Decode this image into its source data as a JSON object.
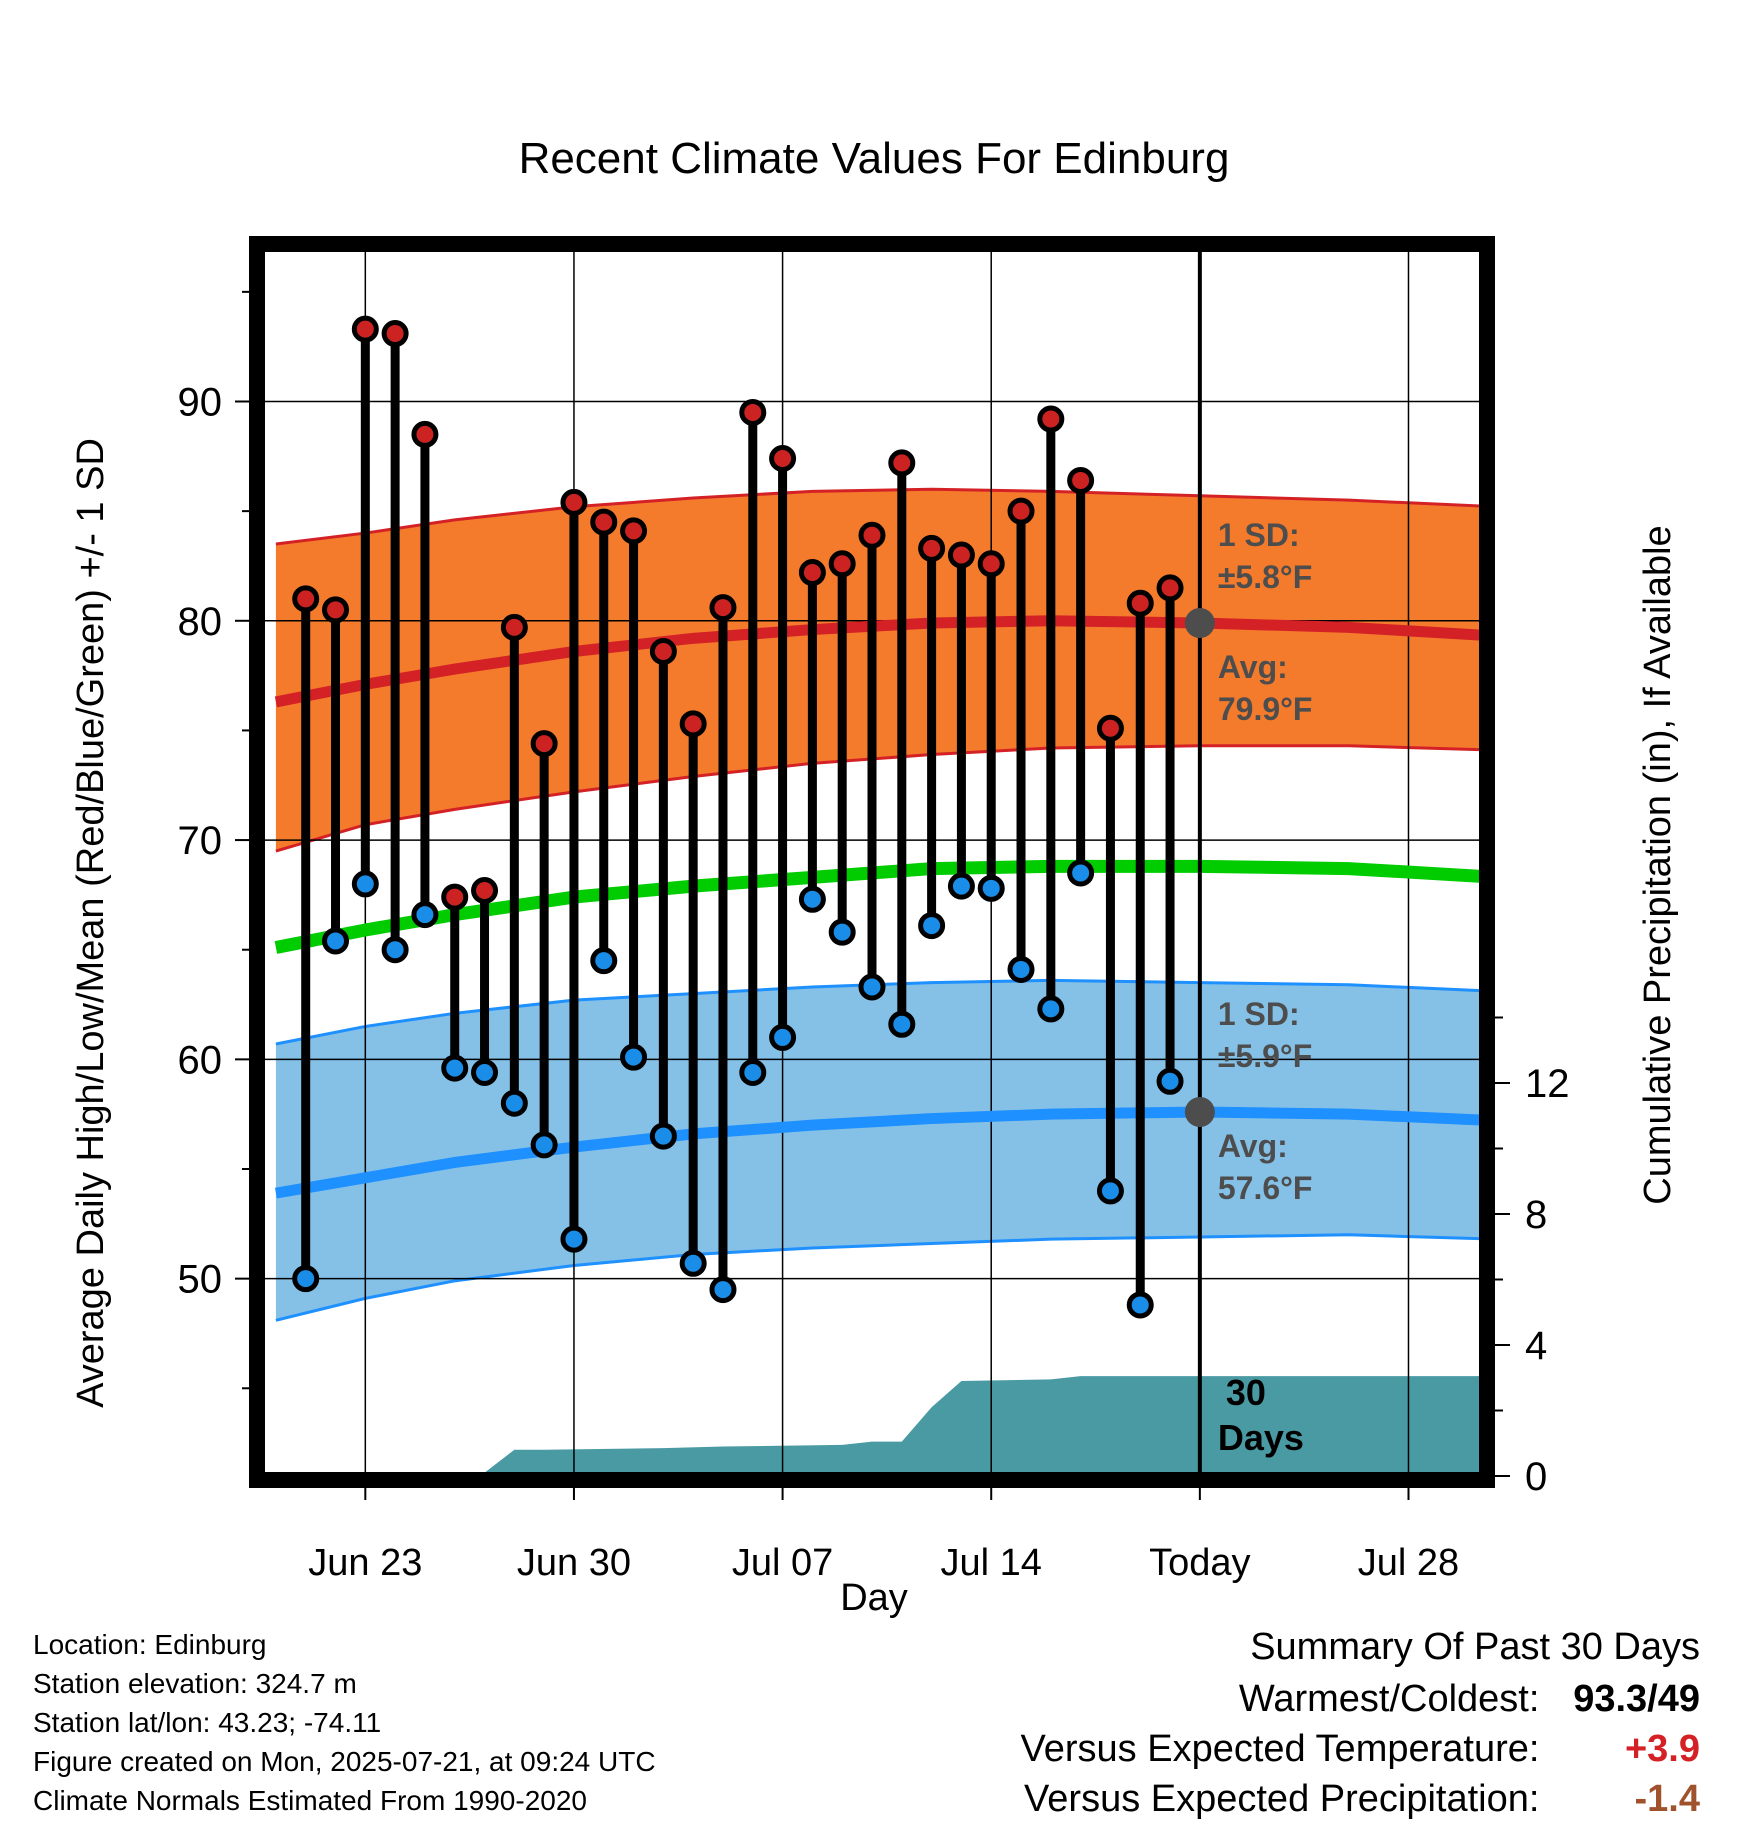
{
  "chart_data": {
    "type": "line",
    "title": "Recent Climate Values For Edinburg",
    "xlabel": "Day",
    "ylabel": "Average Daily High/Low/Mean (Red/Blue/Green) +/- 1 SD",
    "y2label": "Cumulative Precipitation (in), If Available",
    "x_tick_labels": [
      "Jun 23",
      "Jun 30",
      "Jul 07",
      "Jul 14",
      "Today",
      "Jul 28"
    ],
    "x_tick_days": [
      2,
      9,
      16,
      23,
      30,
      37
    ],
    "y_ticks": [
      50,
      60,
      70,
      80,
      90
    ],
    "y2_ticks": [
      0,
      4,
      8,
      12
    ],
    "ylim": [
      41,
      97
    ],
    "xlim": [
      -1.5,
      39.5
    ],
    "grid": true,
    "colors": {
      "high_band": "#f47b2c",
      "high_line": "#d42126",
      "low_band": "#85c1e7",
      "low_line": "#1e90ff",
      "mean_line": "#00cc00",
      "precip": "#4a9aa3",
      "high_point": "#cc2222",
      "low_point": "#1a8de8"
    },
    "days": [
      0,
      1,
      2,
      3,
      4,
      5,
      6,
      7,
      8,
      9,
      10,
      11,
      12,
      13,
      14,
      15,
      16,
      17,
      18,
      19,
      20,
      21,
      22,
      23,
      24,
      25,
      26,
      27,
      28,
      29
    ],
    "highs": [
      81.0,
      80.5,
      93.3,
      93.1,
      88.5,
      67.4,
      67.7,
      79.7,
      74.4,
      85.4,
      84.5,
      84.1,
      78.6,
      75.3,
      80.6,
      89.5,
      87.4,
      82.2,
      82.6,
      83.9,
      87.2,
      83.3,
      83.0,
      82.6,
      85.0,
      89.2,
      86.4,
      75.1,
      80.8,
      81.5
    ],
    "lows": [
      50.0,
      65.4,
      68.0,
      65.0,
      66.6,
      59.6,
      59.4,
      58.0,
      56.1,
      51.8,
      64.5,
      60.1,
      56.5,
      50.7,
      49.5,
      59.4,
      61.0,
      67.3,
      65.8,
      63.3,
      61.6,
      66.1,
      67.9,
      67.8,
      64.1,
      62.3,
      68.5,
      54.0,
      48.8,
      59.0
    ],
    "normals_days": [
      -1,
      2,
      5,
      9,
      13,
      17,
      21,
      25,
      30,
      35,
      40
    ],
    "normal_high_avg": [
      76.3,
      77.1,
      77.8,
      78.6,
      79.2,
      79.6,
      79.9,
      80.0,
      79.9,
      79.7,
      79.3
    ],
    "normal_high_plus_sd": [
      83.5,
      84.0,
      84.6,
      85.2,
      85.6,
      85.9,
      86.0,
      85.9,
      85.7,
      85.5,
      85.2
    ],
    "normal_high_minus_sd": [
      69.5,
      70.7,
      71.4,
      72.2,
      72.9,
      73.5,
      73.9,
      74.2,
      74.3,
      74.3,
      74.1
    ],
    "normal_mean": [
      65.1,
      65.9,
      66.6,
      67.4,
      67.9,
      68.3,
      68.7,
      68.8,
      68.8,
      68.7,
      68.3
    ],
    "normal_low_avg": [
      53.9,
      54.6,
      55.3,
      56.0,
      56.6,
      57.0,
      57.3,
      57.5,
      57.6,
      57.5,
      57.2
    ],
    "normal_low_plus_sd": [
      60.7,
      61.5,
      62.1,
      62.7,
      63.0,
      63.3,
      63.5,
      63.6,
      63.5,
      63.4,
      63.1
    ],
    "normal_low_minus_sd": [
      48.1,
      49.1,
      49.9,
      50.6,
      51.1,
      51.4,
      51.6,
      51.8,
      51.9,
      52.0,
      51.8
    ],
    "precip_days": [
      -1,
      5,
      6,
      7,
      8,
      12,
      14,
      18,
      19,
      20,
      21,
      22,
      25,
      26,
      30,
      40
    ],
    "precip_cumulative": [
      0.0,
      0.0,
      0.1,
      0.8,
      0.8,
      0.85,
      0.9,
      0.95,
      1.05,
      1.05,
      2.1,
      2.9,
      2.95,
      3.05,
      3.05,
      3.05
    ],
    "precip_ylim": [
      0,
      12
    ],
    "today_day": 30,
    "today_high_avg": 79.9,
    "today_low_avg": 57.6,
    "annotations": {
      "high_sd": "1 SD:",
      "high_sd_value": "±5.8°F",
      "high_avg": "Avg:",
      "high_avg_value": "79.9°F",
      "low_sd": "1 SD:",
      "low_sd_value": "±5.9°F",
      "low_avg": "Avg:",
      "low_avg_value": "57.6°F",
      "days_number": "30",
      "days_word": "Days"
    }
  },
  "footer": {
    "location": "Location: Edinburg",
    "elevation": "Station elevation: 324.7 m",
    "latlon": "Station lat/lon: 43.23; -74.11",
    "created": "Figure created on Mon, 2025-07-21, at 09:24 UTC",
    "normals": "Climate Normals Estimated From 1990-2020"
  },
  "summary": {
    "title": "Summary Of Past 30 Days",
    "warmest_label": "Warmest/Coldest:",
    "warmest_value": "93.3/49",
    "temp_label": "Versus Expected Temperature:",
    "temp_value": "+3.9",
    "temp_color": "#d42126",
    "precip_label": "Versus Expected Precipitation:",
    "precip_value": "-1.4",
    "precip_color": "#a0522d"
  }
}
